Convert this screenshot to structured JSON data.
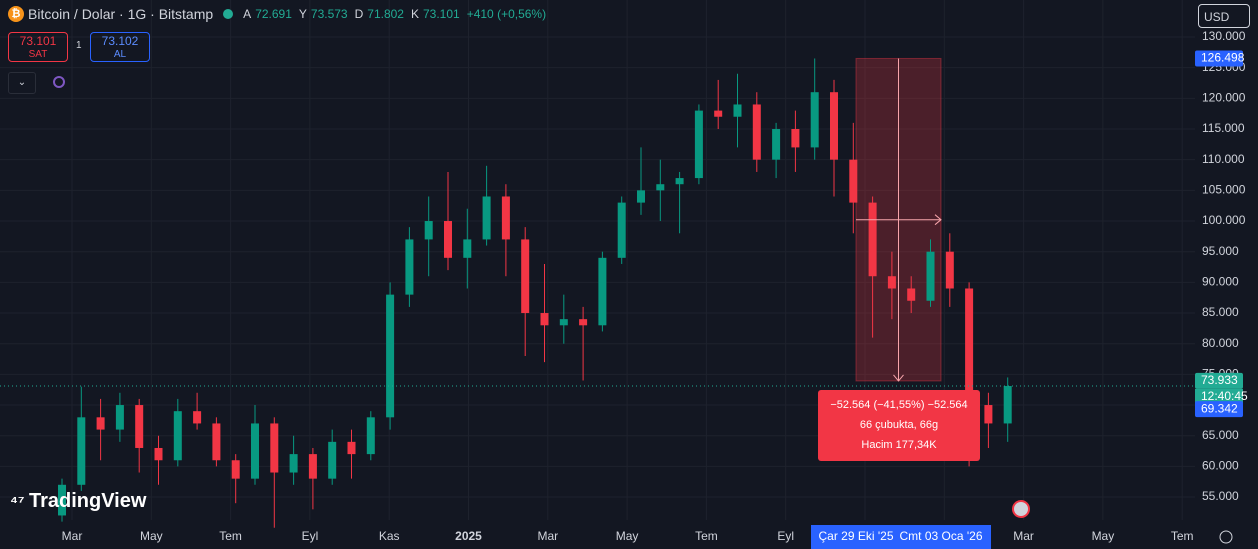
{
  "header": {
    "symbol": "Bitcoin / Dolar · 1G · Bitstamp",
    "ohlc": [
      {
        "key": "A",
        "value": "72.691"
      },
      {
        "key": "Y",
        "value": "73.573"
      },
      {
        "key": "D",
        "value": "71.802"
      },
      {
        "key": "K",
        "value": "73.101"
      }
    ],
    "change": "+410 (+0,56%)",
    "sell": {
      "price": "73.101",
      "label": "SAT"
    },
    "spread": "1",
    "buy": {
      "price": "73.102",
      "label": "AL"
    },
    "currency": "USD",
    "brand": "TradingView"
  },
  "chart_data": {
    "type": "candlestick",
    "candles": [
      [
        52000,
        58000,
        51000,
        57000
      ],
      [
        57000,
        73000,
        56000,
        68000
      ],
      [
        68000,
        71000,
        61000,
        66000
      ],
      [
        66000,
        72000,
        64000,
        70000
      ],
      [
        70000,
        71000,
        59000,
        63000
      ],
      [
        63000,
        65000,
        57000,
        61000
      ],
      [
        61000,
        71000,
        60000,
        69000
      ],
      [
        69000,
        72000,
        66000,
        67000
      ],
      [
        67000,
        68000,
        60000,
        61000
      ],
      [
        61000,
        62000,
        54000,
        58000
      ],
      [
        58000,
        70000,
        57000,
        67000
      ],
      [
        67000,
        68000,
        50000,
        59000
      ],
      [
        59000,
        65000,
        57000,
        62000
      ],
      [
        62000,
        63000,
        53000,
        58000
      ],
      [
        58000,
        66000,
        57000,
        64000
      ],
      [
        64000,
        66000,
        58000,
        62000
      ],
      [
        62000,
        69000,
        61000,
        68000
      ],
      [
        68000,
        90000,
        66000,
        88000
      ],
      [
        88000,
        99000,
        86000,
        97000
      ],
      [
        97000,
        104000,
        91000,
        100000
      ],
      [
        100000,
        108000,
        92000,
        94000
      ],
      [
        94000,
        102000,
        89000,
        97000
      ],
      [
        97000,
        109000,
        96000,
        104000
      ],
      [
        104000,
        106000,
        91000,
        97000
      ],
      [
        97000,
        99000,
        78000,
        85000
      ],
      [
        85000,
        93000,
        77000,
        83000
      ],
      [
        83000,
        88000,
        80000,
        84000
      ],
      [
        84000,
        86000,
        74000,
        83000
      ],
      [
        83000,
        95000,
        82000,
        94000
      ],
      [
        94000,
        104000,
        93000,
        103000
      ],
      [
        103000,
        112000,
        101000,
        105000
      ],
      [
        105000,
        110000,
        100000,
        106000
      ],
      [
        106000,
        108000,
        98000,
        107000
      ],
      [
        107000,
        119000,
        106000,
        118000
      ],
      [
        118000,
        123000,
        115000,
        117000
      ],
      [
        117000,
        124000,
        112000,
        119000
      ],
      [
        119000,
        121000,
        108000,
        110000
      ],
      [
        110000,
        116000,
        107000,
        115000
      ],
      [
        115000,
        118000,
        108000,
        112000
      ],
      [
        112000,
        126498,
        110000,
        121000
      ],
      [
        121000,
        123000,
        104000,
        110000
      ],
      [
        110000,
        116000,
        98000,
        103000
      ],
      [
        103000,
        104000,
        81000,
        91000
      ],
      [
        91000,
        95000,
        84000,
        89000
      ],
      [
        89000,
        91000,
        85000,
        87000
      ],
      [
        87000,
        97000,
        86000,
        95000
      ],
      [
        95000,
        98000,
        86000,
        89000
      ],
      [
        89000,
        90000,
        60000,
        70000
      ],
      [
        70000,
        72000,
        63000,
        67000
      ],
      [
        67000,
        74500,
        64000,
        73101
      ]
    ],
    "up_color": "#089981",
    "down_color": "#f23645",
    "xticks": [
      "Mar",
      "May",
      "Tem",
      "Eyl",
      "Kas",
      "2025",
      "Mar",
      "May",
      "Tem",
      "Eyl",
      null,
      null,
      "Mar",
      "May",
      "Tem"
    ],
    "crosshair_x": [
      "Çar 29 Eki '25",
      "Cmt 03 Oca '26"
    ],
    "ylim": [
      51260,
      136030
    ],
    "yticks": [
      {
        "value": 55000,
        "label": "55.000"
      },
      {
        "value": 60000,
        "label": "60.000"
      },
      {
        "value": 65000,
        "label": "65.000"
      },
      {
        "value": 70000,
        "label": "70.000"
      },
      {
        "value": 75000,
        "label": "75.000"
      },
      {
        "value": 80000,
        "label": "80.000"
      },
      {
        "value": 85000,
        "label": "85.000"
      },
      {
        "value": 90000,
        "label": "90.000"
      },
      {
        "value": 95000,
        "label": "95.000"
      },
      {
        "value": 100000,
        "label": "100.000"
      },
      {
        "value": 105000,
        "label": "105.000"
      },
      {
        "value": 110000,
        "label": "110.000"
      },
      {
        "value": 115000,
        "label": "115.000"
      },
      {
        "value": 120000,
        "label": "120.000"
      },
      {
        "value": 125000,
        "label": "125.000"
      },
      {
        "value": 130000,
        "label": "130.000"
      }
    ],
    "grid": true,
    "last_price": 73101,
    "price_badges": [
      {
        "value": 126498,
        "label": "126.498",
        "color": "#2962ff"
      },
      {
        "value": 73933,
        "label": "73.933",
        "color": "#22ab94",
        "sub": "12:40:45"
      },
      {
        "value": 69342,
        "label": "69.342",
        "color": "#2962ff"
      }
    ],
    "measure": {
      "high": 126498,
      "low": 73934,
      "lines": [
        "−52.564 (−41,55%) −52.564",
        "66 çubukta, 66g",
        "Hacim 177,34K"
      ]
    }
  }
}
